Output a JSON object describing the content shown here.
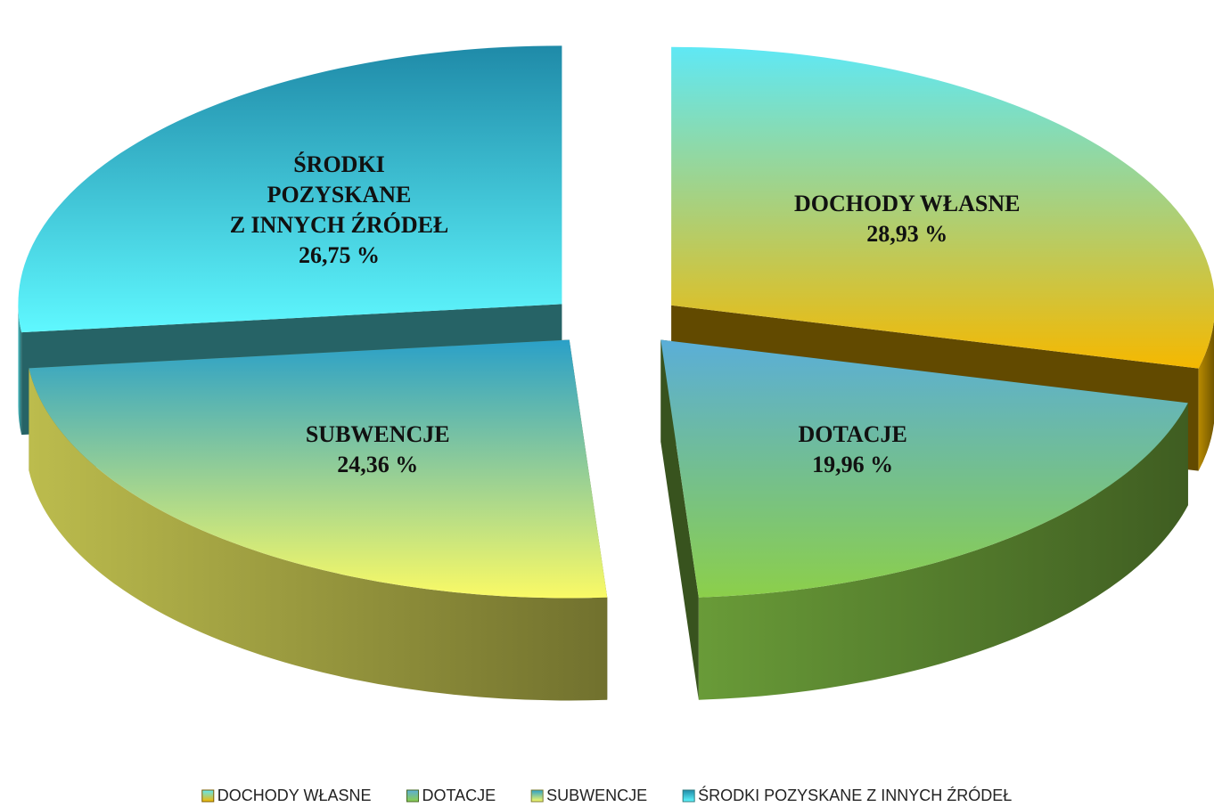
{
  "chart_data": {
    "type": "pie",
    "categories": [
      "DOCHODY WŁASNE",
      "DOTACJE",
      "SUBWENCJE",
      "ŚRODKI POZYSKANE Z INNYCH ŹRÓDEŁ"
    ],
    "values": [
      28.93,
      19.96,
      24.36,
      26.75
    ],
    "value_labels": [
      "28,93 %",
      "19,96 %",
      "24,36 %",
      "26,75 %"
    ],
    "colors": [
      "#f5b800",
      "#8ccf4a",
      "#fafa66",
      "#5ff8ff"
    ],
    "legend": "bottom"
  }
}
